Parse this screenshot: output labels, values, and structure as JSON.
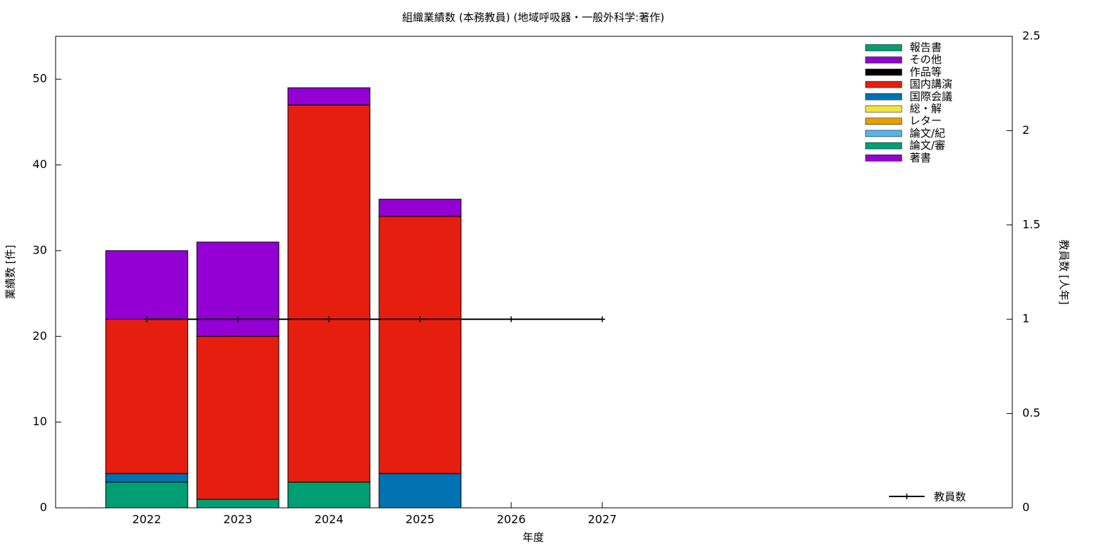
{
  "chart_data": {
    "type": "bar",
    "title": "組織業績数 (本務教員) (地域呼吸器・一般外科学:著作)",
    "x_label": "年度",
    "y_label": "業績数 [件]",
    "y2_label": "教員数 [人年]",
    "x": [
      2022,
      2023,
      2024,
      2025,
      2026,
      2027
    ],
    "xlim": [
      2021,
      2031.5
    ],
    "xticks": [
      2022,
      2023,
      2024,
      2025,
      2026,
      2027
    ],
    "ylim": [
      0,
      55
    ],
    "yticks": [
      0,
      10,
      20,
      30,
      40,
      50
    ],
    "y2lim": [
      0,
      2.5
    ],
    "y2ticks": [
      0,
      0.5,
      1,
      1.5,
      2,
      2.5
    ],
    "stacked": true,
    "series": [
      {
        "name": "報告書",
        "color": "#009e73",
        "values": [
          0,
          0,
          0,
          0,
          0,
          0
        ]
      },
      {
        "name": "その他",
        "color": "#9400d3",
        "values": [
          8,
          11,
          2,
          2,
          0,
          0
        ]
      },
      {
        "name": "作品等",
        "color": "#000000",
        "values": [
          0,
          0,
          0,
          0,
          0,
          0
        ]
      },
      {
        "name": "国内講演",
        "color": "#e51e10",
        "values": [
          18,
          19,
          44,
          30,
          0,
          0
        ]
      },
      {
        "name": "国際会議",
        "color": "#0072b2",
        "values": [
          1,
          0,
          0,
          4,
          0,
          0
        ]
      },
      {
        "name": "総・解",
        "color": "#f0e442",
        "values": [
          0,
          0,
          0,
          0,
          0,
          0
        ]
      },
      {
        "name": "レター",
        "color": "#e69f00",
        "values": [
          0,
          0,
          0,
          0,
          0,
          0
        ]
      },
      {
        "name": "論文/紀",
        "color": "#56b4e9",
        "values": [
          0,
          0,
          0,
          0,
          0,
          0
        ]
      },
      {
        "name": "論文/審",
        "color": "#009e73",
        "values": [
          3,
          1,
          3,
          0,
          0,
          0
        ]
      },
      {
        "name": "著書",
        "color": "#9400d3",
        "values": [
          0,
          0,
          0,
          0,
          0,
          0
        ]
      },
      {
        "name": "教員数",
        "color": "#000000",
        "type": "line",
        "axis": "y2",
        "values": [
          1,
          1,
          1,
          1,
          1,
          1
        ]
      }
    ]
  }
}
